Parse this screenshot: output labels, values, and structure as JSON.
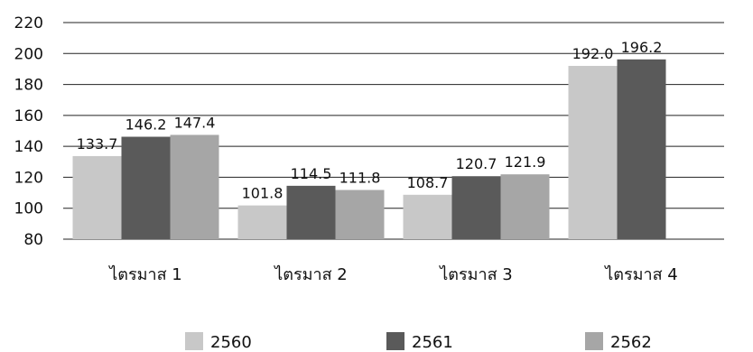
{
  "chart_data": {
    "type": "bar",
    "title": "",
    "xlabel": "",
    "ylabel": "",
    "categories": [
      "ไตรมาส 1",
      "ไตรมาส 2",
      "ไตรมาส 3",
      "ไตรมาส 4"
    ],
    "series": [
      {
        "name": "2560",
        "values": [
          133.7,
          101.8,
          108.7,
          192.0
        ],
        "labels": [
          "133.7",
          "101.8",
          "108.7",
          "192.0"
        ],
        "color": "#c8c8c8"
      },
      {
        "name": "2561",
        "values": [
          146.2,
          114.5,
          120.7,
          196.2
        ],
        "labels": [
          "146.2",
          "114.5",
          "120.7",
          "196.2"
        ],
        "color": "#5a5a5a"
      },
      {
        "name": "2562",
        "values": [
          147.4,
          111.8,
          121.9,
          null
        ],
        "labels": [
          "147.4",
          "111.8",
          "121.9",
          ""
        ],
        "color": "#a6a6a6"
      }
    ],
    "ylim": [
      80,
      220
    ],
    "yticks": [
      "80",
      "100",
      "120",
      "140",
      "160",
      "180",
      "200",
      "220"
    ],
    "grid": true,
    "legend_position": "bottom"
  }
}
